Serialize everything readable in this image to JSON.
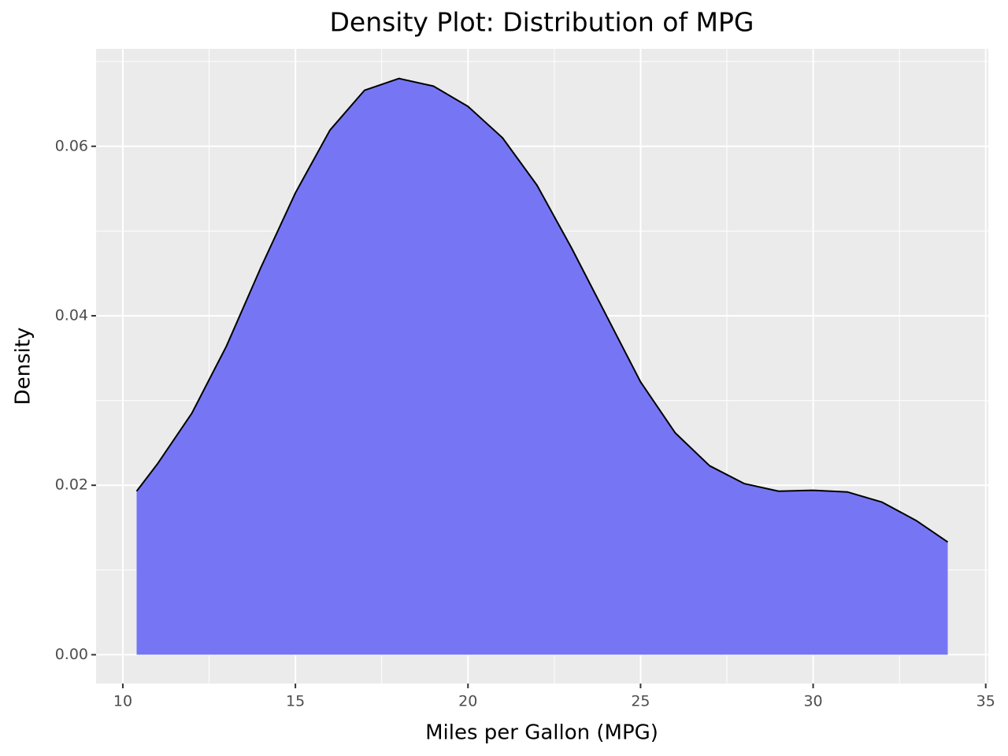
{
  "chart_data": {
    "type": "area",
    "title": "Density Plot: Distribution of MPG",
    "x_label": "Miles per Gallon (MPG)",
    "y_label": "Density",
    "x": [
      10.4,
      11,
      12,
      13,
      14,
      15,
      16,
      17,
      18,
      19,
      20,
      21,
      22,
      23,
      24,
      25,
      26,
      27,
      28,
      29,
      30,
      31,
      32,
      33,
      33.9
    ],
    "values": [
      0.0193,
      0.0225,
      0.0285,
      0.0364,
      0.0457,
      0.0545,
      0.0619,
      0.0666,
      0.068,
      0.0671,
      0.0647,
      0.061,
      0.0554,
      0.048,
      0.0401,
      0.0322,
      0.0262,
      0.0223,
      0.0202,
      0.0193,
      0.0194,
      0.0192,
      0.018,
      0.0158,
      0.0133
    ],
    "fill_color": "#7676f5",
    "line_color": "#000000",
    "xlim": [
      9.225,
      35.075
    ],
    "ylim": [
      -0.0034,
      0.0715
    ],
    "xticks": [
      10,
      15,
      20,
      25,
      30,
      35
    ],
    "yticks": [
      {
        "value": 0,
        "label": "0.00"
      },
      0.02,
      0.04,
      0.06
    ],
    "grid": true,
    "minor_grid": true
  }
}
